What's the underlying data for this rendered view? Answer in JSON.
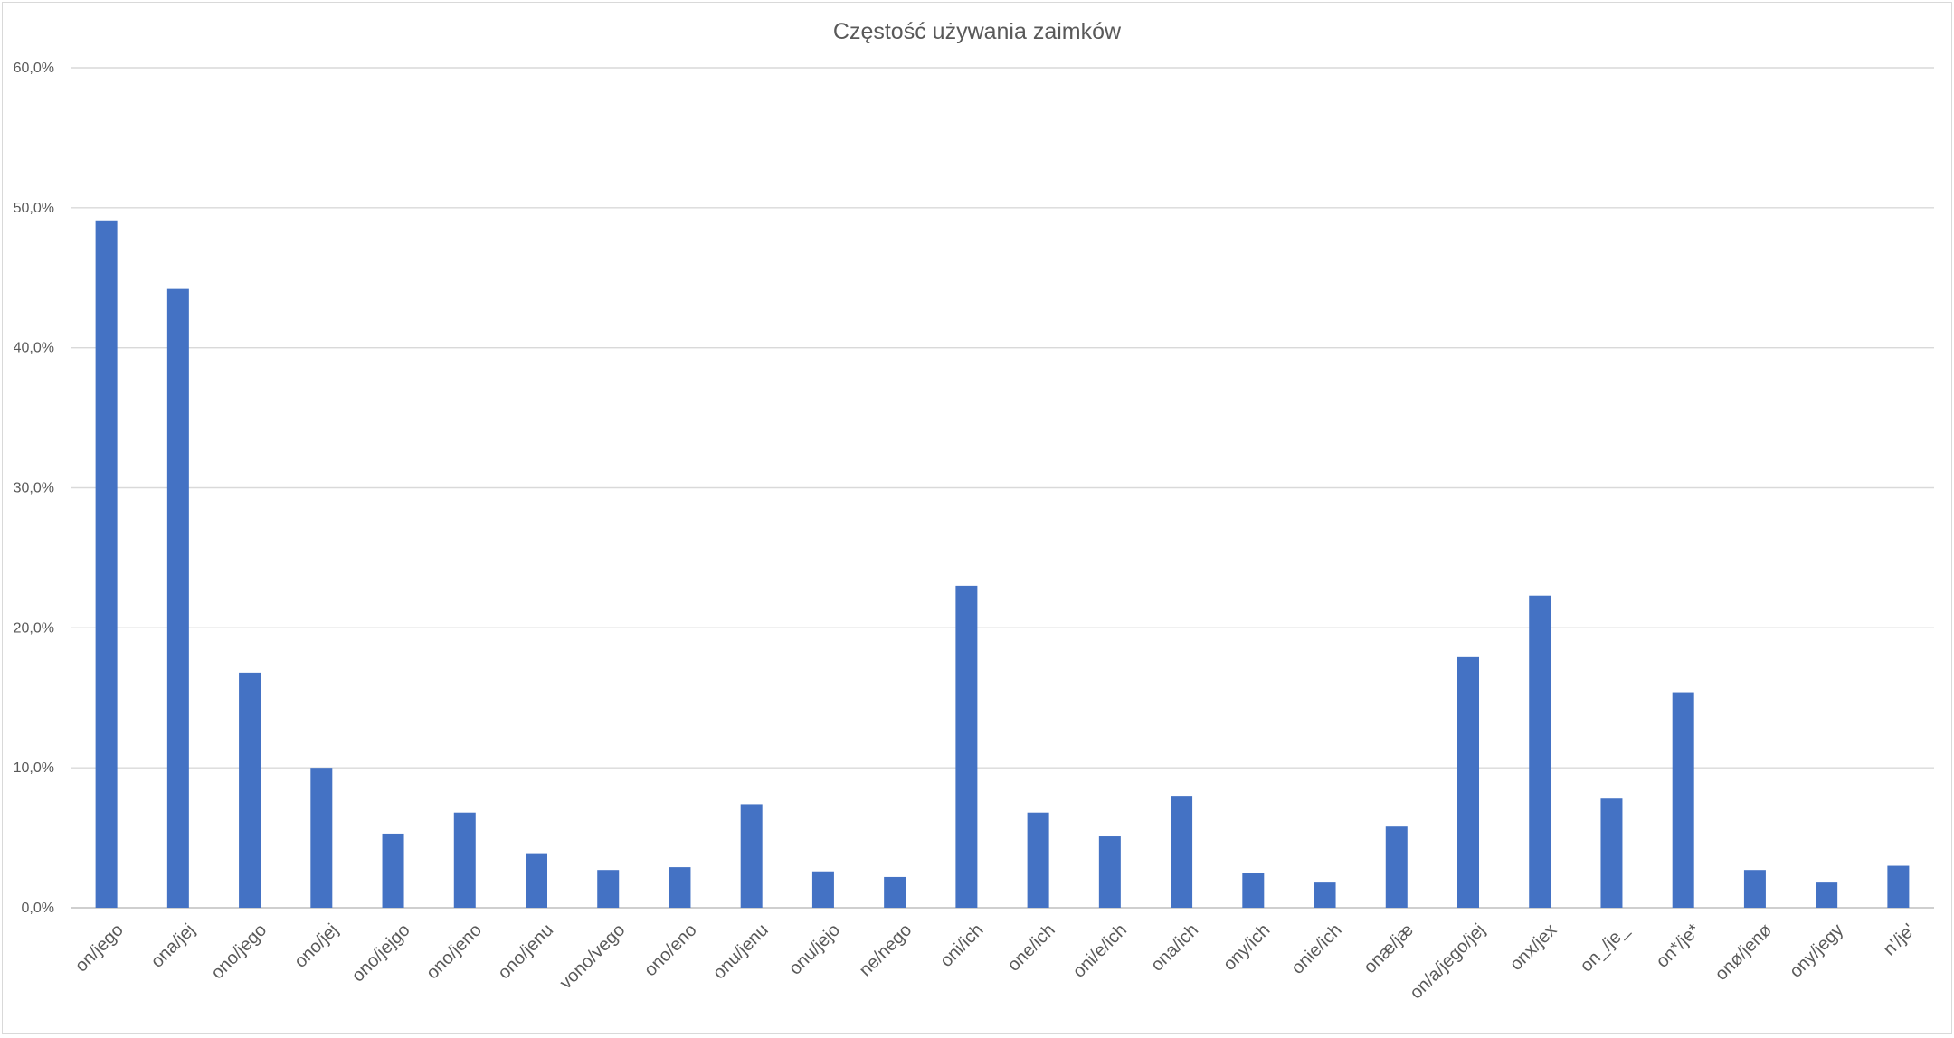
{
  "chart_data": {
    "type": "bar",
    "title": "Częstość używania zaimków",
    "xlabel": "",
    "ylabel": "",
    "ylim": [
      0,
      60
    ],
    "yticks": [
      {
        "value": 0,
        "label": "0,0%"
      },
      {
        "value": 10,
        "label": "10,0%"
      },
      {
        "value": 20,
        "label": "20,0%"
      },
      {
        "value": 30,
        "label": "30,0%"
      },
      {
        "value": 40,
        "label": "40,0%"
      },
      {
        "value": 50,
        "label": "50,0%"
      },
      {
        "value": 60,
        "label": "60,0%"
      }
    ],
    "grid": true,
    "legend": "none",
    "bar_color": "#4472C4",
    "categories": [
      "on/jego",
      "ona/jej",
      "ono/jego",
      "ono/jej",
      "ono/jejgo",
      "ono/jeno",
      "ono/jenu",
      "vono/vego",
      "ono/eno",
      "onu/jenu",
      "onu/jejo",
      "ne/nego",
      "oni/ich",
      "one/ich",
      "oni/e/ich",
      "ona/ich",
      "ony/ich",
      "onie/ich",
      "onæ/jæ",
      "on/a/jego/jej",
      "onx/jex",
      "on_/je_",
      "on*/je*",
      "onø/jenø",
      "ony/jegy",
      "n'/je'"
    ],
    "values": [
      49.1,
      44.2,
      16.8,
      10.0,
      5.3,
      6.8,
      3.9,
      2.7,
      2.9,
      7.4,
      2.6,
      2.2,
      23.0,
      6.8,
      5.1,
      8.0,
      2.5,
      1.8,
      5.8,
      17.9,
      22.3,
      7.8,
      15.4,
      2.7,
      1.8,
      3.0
    ]
  }
}
